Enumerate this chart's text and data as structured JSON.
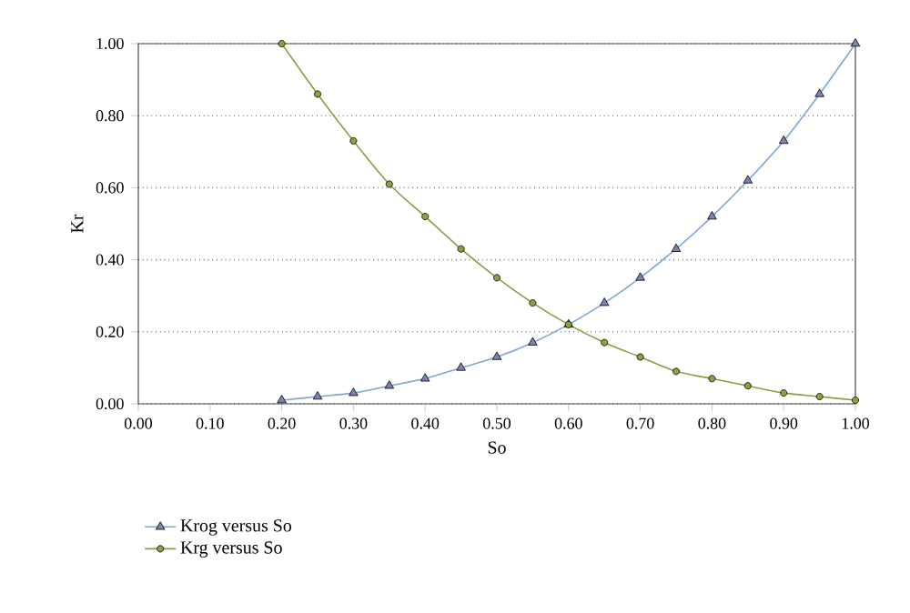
{
  "chart_data": {
    "type": "line",
    "xlabel": "So",
    "ylabel": "Kr",
    "xlim": [
      0,
      1
    ],
    "ylim": [
      0,
      1
    ],
    "xticks": [
      {
        "value": 0,
        "label": "0.00"
      },
      {
        "value": 0.1,
        "label": "0.10"
      },
      {
        "value": 0.2,
        "label": "0.20"
      },
      {
        "value": 0.3,
        "label": "0.30"
      },
      {
        "value": 0.4,
        "label": "0.40"
      },
      {
        "value": 0.5,
        "label": "0.50"
      },
      {
        "value": 0.6,
        "label": "0.60"
      },
      {
        "value": 0.7,
        "label": "0.70"
      },
      {
        "value": 0.8,
        "label": "0.80"
      },
      {
        "value": 0.9,
        "label": "0.90"
      },
      {
        "value": 1,
        "label": "1.00"
      }
    ],
    "yticks": [
      {
        "value": 0,
        "label": "0.00"
      },
      {
        "value": 0.2,
        "label": "0.20"
      },
      {
        "value": 0.4,
        "label": "0.40"
      },
      {
        "value": 0.6,
        "label": "0.60"
      },
      {
        "value": 0.8,
        "label": "0.80"
      },
      {
        "value": 1,
        "label": "1.00"
      }
    ],
    "x": [
      0.2,
      0.25,
      0.3,
      0.35,
      0.4,
      0.45,
      0.5,
      0.55,
      0.6,
      0.65,
      0.7,
      0.75,
      0.8,
      0.85,
      0.9,
      0.95,
      1.0
    ],
    "grid": "y",
    "legend": "bottom",
    "line_style": "solid",
    "series": [
      {
        "name": "Krog versus So",
        "color": "#7ba7d7",
        "marker": "triangle",
        "values": [
          0.01,
          0.02,
          0.03,
          0.05,
          0.07,
          0.1,
          0.13,
          0.17,
          0.22,
          0.28,
          0.35,
          0.43,
          0.52,
          0.62,
          0.73,
          0.86,
          1.0
        ]
      },
      {
        "name": "Krg versus So",
        "color": "#8c9c45",
        "marker": "circle",
        "values": [
          1.0,
          0.86,
          0.73,
          0.61,
          0.52,
          0.43,
          0.35,
          0.28,
          0.22,
          0.17,
          0.13,
          0.09,
          0.07,
          0.05,
          0.03,
          0.02,
          0.01
        ]
      }
    ]
  }
}
